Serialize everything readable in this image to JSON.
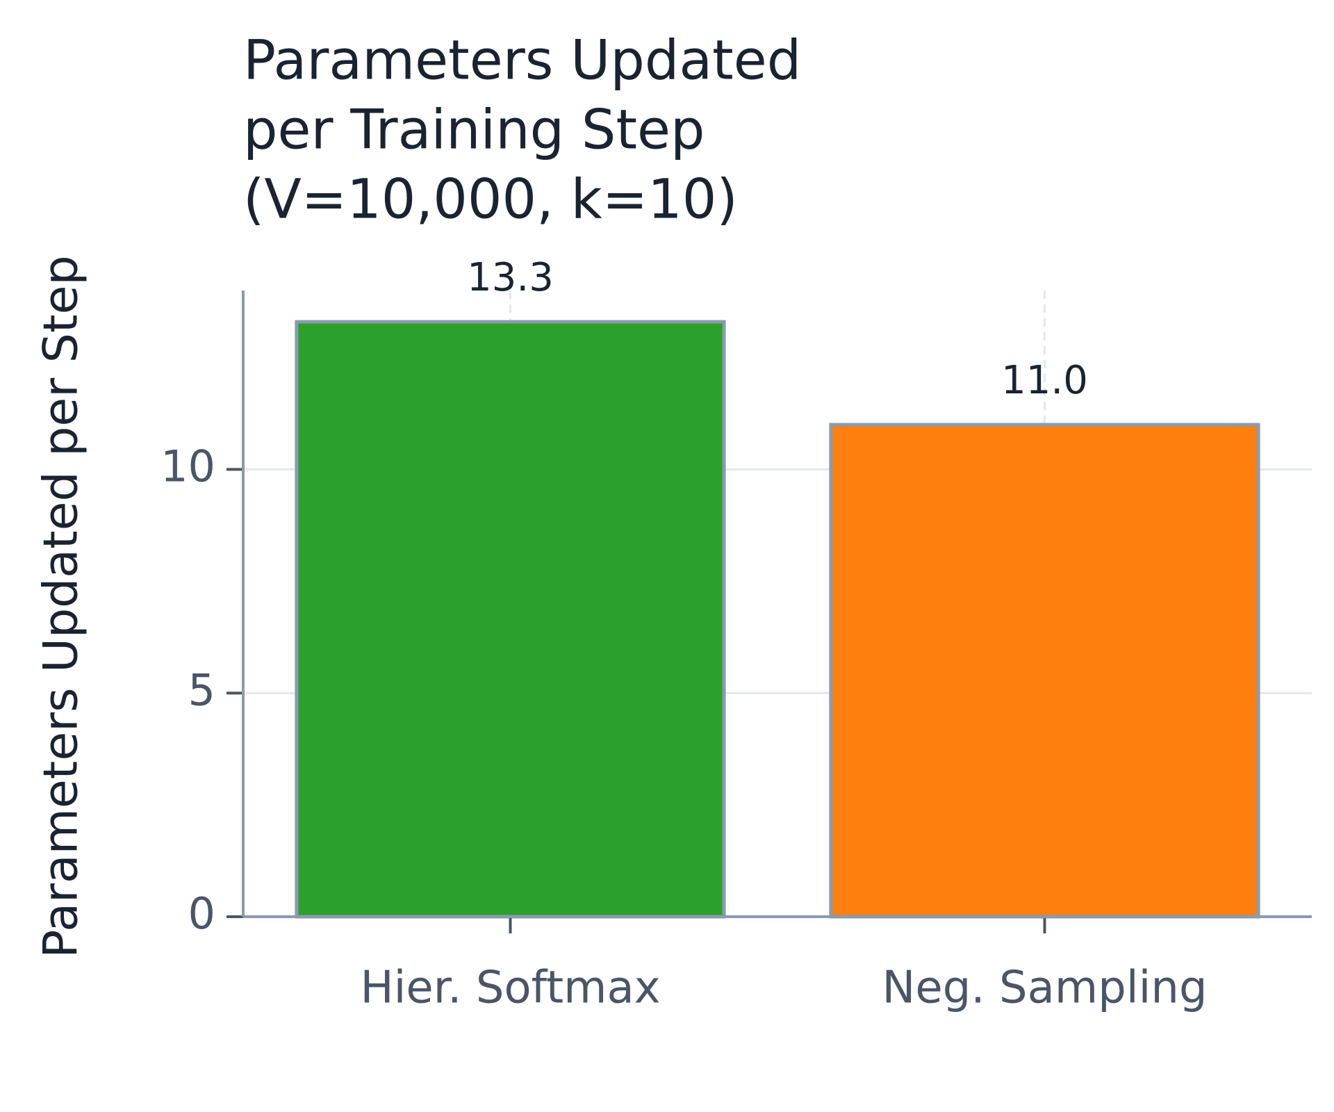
{
  "chart_data": {
    "type": "bar",
    "title": [
      "Parameters Updated",
      "per Training Step",
      "(V=10,000, k=10)"
    ],
    "ylabel": "Parameters Updated per Step",
    "categories": [
      "Hier. Softmax",
      "Neg. Sampling"
    ],
    "values": [
      13.3,
      11.0
    ],
    "value_labels": [
      "13.3",
      "11.0"
    ],
    "colors": [
      "#2ca02c",
      "#ff7f0e"
    ],
    "ylim": [
      0,
      14
    ],
    "yticks": [
      0,
      5,
      10
    ],
    "grid": true
  }
}
